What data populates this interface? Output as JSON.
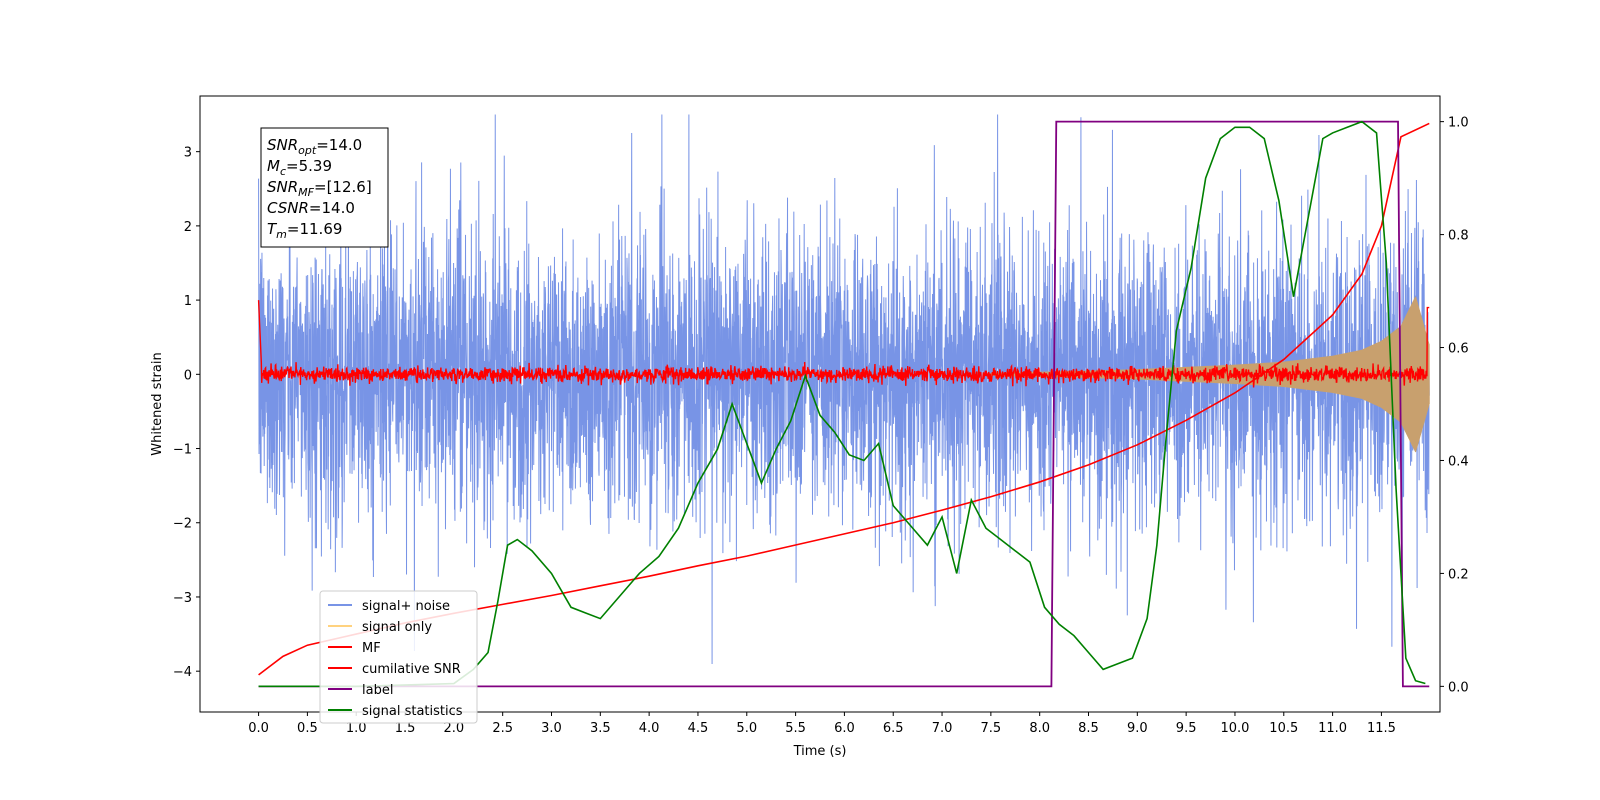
{
  "chart_data": {
    "type": "line",
    "xlabel": "Time (s)",
    "ylabel": "Whitened strain",
    "xlim": [
      -0.6,
      12.1
    ],
    "ylim": [
      -4.55,
      3.75
    ],
    "y2lim": [
      -0.0454,
      1.0454
    ],
    "xticks": [
      "0.0",
      "0.5",
      "1.0",
      "1.5",
      "2.0",
      "2.5",
      "3.0",
      "3.5",
      "4.0",
      "4.5",
      "5.0",
      "5.5",
      "6.0",
      "6.5",
      "7.0",
      "7.5",
      "8.0",
      "8.5",
      "9.0",
      "9.5",
      "10.0",
      "10.5",
      "11.0",
      "11.5"
    ],
    "yticks": [
      "3",
      "2",
      "1",
      "0",
      "−1",
      "−2",
      "−3",
      "−4"
    ],
    "y2ticks": [
      "1.0",
      "0.8",
      "0.6",
      "0.4",
      "0.2",
      "0.0"
    ],
    "grid": false,
    "legend_position": "lower-left",
    "legend": [
      {
        "label": "signal+ noise",
        "color": "#7894e6"
      },
      {
        "label": "signal only",
        "color": "#ffd27f"
      },
      {
        "label": "MF",
        "color": "#ff0000"
      },
      {
        "label": "cumilative SNR",
        "color": "#ff0000"
      },
      {
        "label": "label",
        "color": "#800080"
      },
      {
        "label": "signal statistics",
        "color": "#008000"
      }
    ],
    "annotation": [
      {
        "sym": "SNR",
        "sub": "opt",
        "val": "=14.0"
      },
      {
        "sym": "M",
        "sub": "c",
        "val": "=5.39"
      },
      {
        "sym": "SNR",
        "sub": "MF",
        "val": "=[12.6]"
      },
      {
        "sym": "CSNR",
        "sub": "",
        "val": "=14.0"
      },
      {
        "sym": "T",
        "sub": "m",
        "val": "=11.69"
      }
    ],
    "series": [
      {
        "name": "signal+ noise",
        "axis": "left",
        "color": "#7894e6",
        "x_range": [
          0.0,
          11.99
        ],
        "approx_envelope": [
          -2.8,
          2.8
        ],
        "description": "dense noise trace"
      },
      {
        "name": "signal only",
        "axis": "left",
        "color": "#c8a06e",
        "x_range": [
          7.5,
          11.99
        ],
        "envelope": {
          "x": [
            7.5,
            8.5,
            9.0,
            9.5,
            10.0,
            10.5,
            11.0,
            11.3,
            11.5,
            11.7,
            11.85,
            11.99
          ],
          "amp": [
            0.02,
            0.05,
            0.07,
            0.1,
            0.13,
            0.17,
            0.25,
            0.33,
            0.45,
            0.65,
            1.05,
            0.4
          ]
        }
      },
      {
        "name": "MF",
        "axis": "left",
        "color": "#ff0000",
        "x_range": [
          0.0,
          11.99
        ],
        "approx_envelope": [
          -0.1,
          0.15
        ]
      },
      {
        "name": "cumilative SNR",
        "axis": "left",
        "color": "#ff0000",
        "x": [
          0.0,
          0.25,
          0.5,
          1.0,
          1.5,
          2.0,
          2.5,
          3.0,
          3.5,
          4.0,
          4.5,
          5.0,
          5.5,
          6.0,
          6.5,
          7.0,
          7.5,
          8.0,
          8.5,
          9.0,
          9.5,
          10.0,
          10.5,
          11.0,
          11.3,
          11.5,
          11.7,
          11.99
        ],
        "y": [
          -4.05,
          -3.8,
          -3.65,
          -3.5,
          -3.35,
          -3.22,
          -3.1,
          -2.98,
          -2.85,
          -2.72,
          -2.58,
          -2.45,
          -2.3,
          -2.15,
          -2.0,
          -1.83,
          -1.65,
          -1.45,
          -1.22,
          -0.95,
          -0.62,
          -0.25,
          0.2,
          0.8,
          1.35,
          2.0,
          3.2,
          3.38
        ]
      },
      {
        "name": "label",
        "axis": "right",
        "color": "#800080",
        "x": [
          0.0,
          8.12,
          8.17,
          11.67,
          11.72,
          11.99
        ],
        "y": [
          0.0,
          0.0,
          1.0,
          1.0,
          0.0,
          0.0
        ]
      },
      {
        "name": "signal statistics",
        "axis": "right",
        "color": "#008000",
        "x": [
          0.0,
          1.0,
          2.0,
          2.2,
          2.35,
          2.45,
          2.55,
          2.65,
          2.8,
          3.0,
          3.2,
          3.35,
          3.5,
          3.7,
          3.9,
          4.1,
          4.3,
          4.5,
          4.7,
          4.85,
          5.0,
          5.15,
          5.3,
          5.45,
          5.6,
          5.75,
          5.9,
          6.05,
          6.2,
          6.35,
          6.5,
          6.7,
          6.85,
          7.0,
          7.15,
          7.3,
          7.45,
          7.6,
          7.75,
          7.9,
          8.05,
          8.2,
          8.35,
          8.5,
          8.65,
          8.8,
          8.95,
          9.1,
          9.2,
          9.3,
          9.4,
          9.55,
          9.7,
          9.85,
          10.0,
          10.15,
          10.3,
          10.45,
          10.6,
          10.75,
          10.9,
          11.0,
          11.15,
          11.3,
          11.45,
          11.55,
          11.65,
          11.75,
          11.85,
          11.95
        ],
        "y": [
          0.0,
          0.0,
          0.005,
          0.03,
          0.06,
          0.15,
          0.25,
          0.26,
          0.24,
          0.2,
          0.14,
          0.13,
          0.12,
          0.16,
          0.2,
          0.23,
          0.28,
          0.36,
          0.42,
          0.5,
          0.43,
          0.36,
          0.42,
          0.47,
          0.55,
          0.48,
          0.45,
          0.41,
          0.4,
          0.43,
          0.32,
          0.28,
          0.25,
          0.3,
          0.2,
          0.33,
          0.28,
          0.26,
          0.24,
          0.22,
          0.14,
          0.11,
          0.09,
          0.06,
          0.03,
          0.04,
          0.05,
          0.12,
          0.25,
          0.45,
          0.63,
          0.74,
          0.9,
          0.97,
          0.99,
          0.99,
          0.97,
          0.86,
          0.69,
          0.83,
          0.97,
          0.98,
          0.99,
          1.0,
          0.98,
          0.75,
          0.35,
          0.05,
          0.01,
          0.005
        ]
      }
    ]
  }
}
